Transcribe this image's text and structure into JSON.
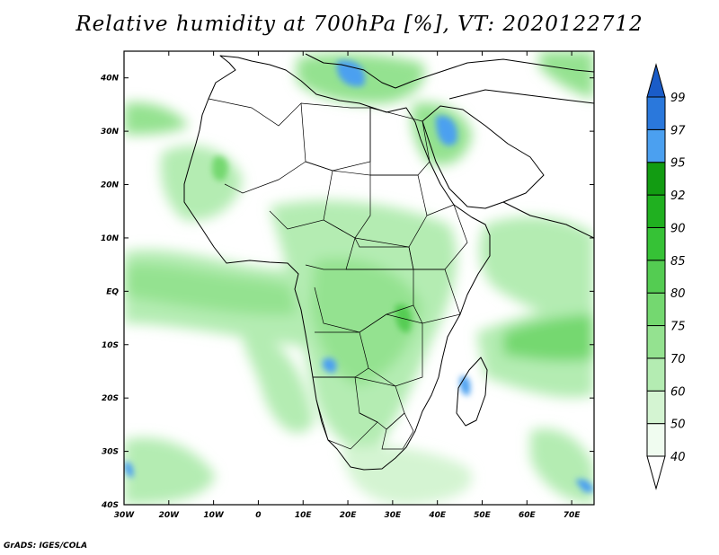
{
  "title": "Relative humidity at 700hPa [%], VT: 2020122712",
  "credit": "GrADS: IGES/COLA",
  "map": {
    "lon_range": [
      -30,
      75
    ],
    "lat_range": [
      -40,
      45
    ],
    "lat_ticks": [
      {
        "value": 40,
        "label": "40N"
      },
      {
        "value": 30,
        "label": "30N"
      },
      {
        "value": 20,
        "label": "20N"
      },
      {
        "value": 10,
        "label": "10N"
      },
      {
        "value": 0,
        "label": "EQ"
      },
      {
        "value": -10,
        "label": "10S"
      },
      {
        "value": -20,
        "label": "20S"
      },
      {
        "value": -30,
        "label": "30S"
      },
      {
        "value": -40,
        "label": "40S"
      }
    ],
    "lon_ticks": [
      {
        "value": -30,
        "label": "30W"
      },
      {
        "value": -20,
        "label": "20W"
      },
      {
        "value": -10,
        "label": "10W"
      },
      {
        "value": 0,
        "label": "0"
      },
      {
        "value": 10,
        "label": "10E"
      },
      {
        "value": 20,
        "label": "20E"
      },
      {
        "value": 30,
        "label": "30E"
      },
      {
        "value": 40,
        "label": "40E"
      },
      {
        "value": 50,
        "label": "50E"
      },
      {
        "value": 60,
        "label": "60E"
      },
      {
        "value": 70,
        "label": "70E"
      }
    ]
  },
  "colorbar": {
    "levels": [
      {
        "label": "40",
        "color": "#f0fcf0"
      },
      {
        "label": "50",
        "color": "#d4f4d2"
      },
      {
        "label": "60",
        "color": "#b4ecb2"
      },
      {
        "label": "70",
        "color": "#94e290"
      },
      {
        "label": "75",
        "color": "#74d870"
      },
      {
        "label": "80",
        "color": "#54cc52"
      },
      {
        "label": "85",
        "color": "#36c236"
      },
      {
        "label": "90",
        "color": "#20b020"
      },
      {
        "label": "92",
        "color": "#129c12"
      },
      {
        "label": "95",
        "color": "#4ba0f0"
      },
      {
        "label": "97",
        "color": "#2a78dc"
      },
      {
        "label": "99",
        "color": "#1a5cc8"
      }
    ],
    "low_color": "#ffffff",
    "high_color": "#1a5cc8"
  }
}
